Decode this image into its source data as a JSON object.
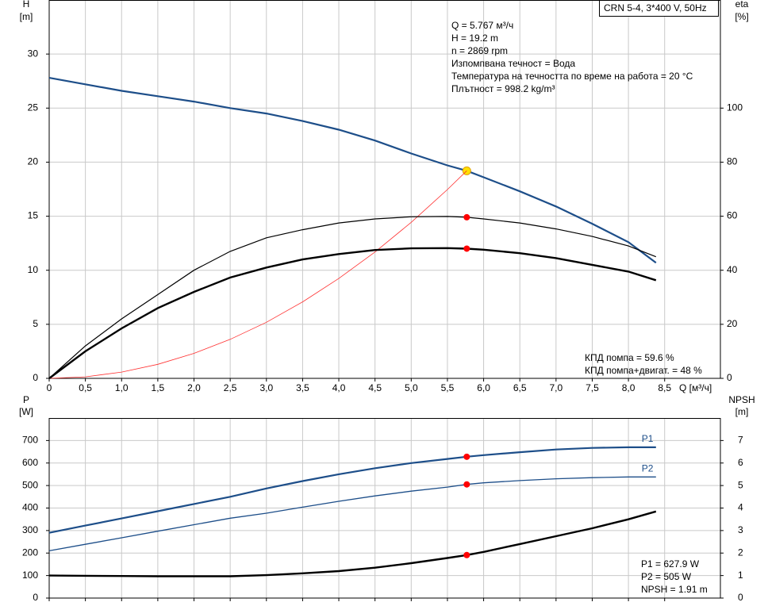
{
  "chart_data": [
    {
      "type": "line",
      "title": "CRN 5-4, 3*400 V, 50Hz",
      "annotations": [
        "Q = 5.767 м³/ч",
        "H = 19.2 m",
        "n = 2869 rpm",
        "Изпомпвана течност = Вода",
        "Температура на течността по време на работа = 20 °C",
        "Плътност = 998.2 kg/m³"
      ],
      "efficiency_notes": [
        "КПД помпа = 59.6 %",
        "КПД помпа+двигат. = 48 %"
      ],
      "ylabel": "H",
      "yunit": "[m]",
      "y2label": "eta",
      "y2unit": "[%]",
      "xlabel": "Q [м³/ч]",
      "duty_q": 5.767,
      "grid": true,
      "x": [
        0,
        0.5,
        1,
        1.5,
        2,
        2.5,
        3,
        3.5,
        4,
        4.5,
        5,
        5.5,
        5.767,
        6,
        6.5,
        7,
        7.5,
        8,
        8.38
      ],
      "xlim": [
        0,
        9.27
      ],
      "xticks": [
        0,
        {
          "value": 0.5,
          "label": "0,5"
        },
        {
          "value": 1,
          "label": "1,0"
        },
        {
          "value": 1.5,
          "label": "1,5"
        },
        {
          "value": 2,
          "label": "2,0"
        },
        {
          "value": 2.5,
          "label": "2,5"
        },
        {
          "value": 3,
          "label": "3,0"
        },
        {
          "value": 3.5,
          "label": "3,5"
        },
        {
          "value": 4,
          "label": "4,0"
        },
        {
          "value": 4.5,
          "label": "4,5"
        },
        {
          "value": 5,
          "label": "5,0"
        },
        {
          "value": 5.5,
          "label": "5,5"
        },
        {
          "value": 6,
          "label": "6,0"
        },
        {
          "value": 6.5,
          "label": "6,5"
        },
        {
          "value": 7,
          "label": "7,0"
        },
        {
          "value": 7.5,
          "label": "7,5"
        },
        {
          "value": 8,
          "label": "8,0"
        },
        {
          "value": 8.5,
          "label": "8,5"
        }
      ],
      "ylim": [
        0,
        35
      ],
      "yticks": [
        0,
        5,
        10,
        15,
        20,
        25,
        30
      ],
      "y2lim": [
        0,
        140
      ],
      "y2ticks": [
        0,
        20,
        40,
        60,
        80,
        100
      ],
      "series": [
        {
          "color": "#1d4e89",
          "width": 2.2,
          "marker_color": "#ffe000",
          "values": [
            27.8,
            27.2,
            26.6,
            26.1,
            25.6,
            25.0,
            24.5,
            23.8,
            23.0,
            22.0,
            20.8,
            19.7,
            19.2,
            18.6,
            17.3,
            15.9,
            14.3,
            12.6,
            10.7
          ]
        },
        {
          "color": "#ff3030",
          "width": 0.8,
          "values": [
            0,
            0.14,
            0.58,
            1.3,
            2.31,
            3.61,
            5.19,
            7.07,
            9.24,
            11.69,
            14.43,
            17.46,
            19.2,
            null,
            null,
            null,
            null,
            null,
            null
          ]
        },
        {
          "color": "#000000",
          "width": 1.2,
          "axis": "y2",
          "marker_color": "#ff0000",
          "values": [
            0,
            12,
            22,
            31,
            40,
            47,
            52,
            55,
            57.5,
            59,
            59.8,
            59.9,
            59.6,
            59,
            57.5,
            55.3,
            52.5,
            49,
            45
          ]
        },
        {
          "color": "#000000",
          "width": 2.4,
          "axis": "y2",
          "marker_color": "#ff0000",
          "values": [
            0,
            10,
            18.5,
            26,
            32,
            37.3,
            41,
            44,
            46,
            47.5,
            48.1,
            48.2,
            48,
            47.6,
            46.3,
            44.5,
            42,
            39.5,
            36.3
          ]
        }
      ]
    },
    {
      "type": "line",
      "annotations": [
        "P1 = 627.9 W",
        "P2 = 505 W",
        "NPSH = 1.91 m"
      ],
      "ylabel": "P",
      "yunit": "[W]",
      "y2label": "NPSH",
      "y2unit": "[m]",
      "duty_q": 5.767,
      "grid": true,
      "x": [
        0,
        0.5,
        1,
        1.5,
        2,
        2.5,
        3,
        3.5,
        4,
        4.5,
        5,
        5.5,
        5.767,
        6,
        6.5,
        7,
        7.5,
        8,
        8.38
      ],
      "xlim": [
        0,
        9.27
      ],
      "xticks": [
        0,
        0.5,
        1,
        1.5,
        2,
        2.5,
        3,
        3.5,
        4,
        4.5,
        5,
        5.5,
        6,
        6.5,
        7,
        7.5,
        8,
        8.5
      ],
      "ylim": [
        0,
        800
      ],
      "yticks": [
        0,
        100,
        200,
        300,
        400,
        500,
        600,
        700
      ],
      "y2lim": [
        0,
        8
      ],
      "y2ticks": [
        0,
        1,
        2,
        3,
        4,
        5,
        6,
        7
      ],
      "series": [
        {
          "name": "P1",
          "color": "#1d4e89",
          "width": 2.2,
          "marker_color": "#ff0000",
          "values": [
            290,
            322,
            354,
            386,
            418,
            450,
            487,
            520,
            550,
            577,
            600,
            618,
            627.9,
            635,
            648,
            660,
            667,
            670,
            670
          ]
        },
        {
          "name": "P2",
          "color": "#1d4e89",
          "width": 1.3,
          "marker_color": "#ff0000",
          "values": [
            210,
            239,
            268,
            297,
            326,
            355,
            377,
            404,
            430,
            454,
            475,
            493,
            505,
            512,
            522,
            530,
            535,
            538,
            538
          ]
        },
        {
          "color": "#000000",
          "width": 2.4,
          "axis": "y2",
          "marker_color": "#ff0000",
          "values": [
            1.0,
            0.99,
            0.98,
            0.97,
            0.97,
            0.97,
            1.02,
            1.1,
            1.2,
            1.35,
            1.55,
            1.78,
            1.91,
            2.05,
            2.4,
            2.75,
            3.1,
            3.5,
            3.85
          ]
        }
      ]
    }
  ]
}
